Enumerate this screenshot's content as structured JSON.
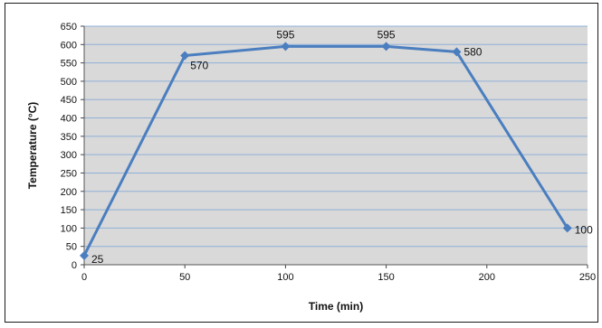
{
  "chart_data": {
    "type": "line",
    "title": "",
    "xlabel": "Time (min)",
    "ylabel": "Temperature (°C)",
    "xlim": [
      0,
      250
    ],
    "ylim": [
      0,
      650
    ],
    "xticks": [
      "0",
      "50",
      "100",
      "150",
      "200",
      "250"
    ],
    "yticks": [
      "0",
      "50",
      "100",
      "150",
      "200",
      "250",
      "300",
      "350",
      "400",
      "450",
      "500",
      "550",
      "600",
      "650"
    ],
    "grid": true,
    "legend": "none",
    "series": [
      {
        "x": [
          0,
          50,
          100,
          150,
          185,
          240
        ],
        "y": [
          25,
          570,
          595,
          595,
          580,
          100
        ],
        "labels": [
          "25",
          "570",
          "595",
          "595",
          "580",
          "100"
        ],
        "color": "#4a7ebf"
      }
    ],
    "plot_background": "#d9d9d9",
    "grid_color": "#8fb0d8"
  }
}
